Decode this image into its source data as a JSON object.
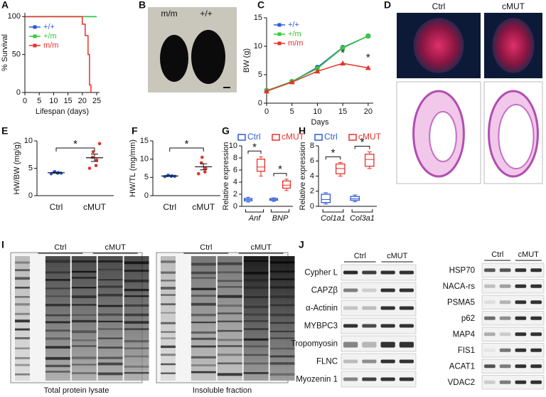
{
  "panel_letters": [
    "A",
    "B",
    "C",
    "D",
    "E",
    "F",
    "G",
    "H",
    "I",
    "J"
  ],
  "chart_data": [
    {
      "type": "line",
      "step": true,
      "xlabel": "Lifespan (days)",
      "ylabel": "% Survival",
      "x": [
        0,
        19,
        20,
        21,
        22,
        22.5,
        23,
        25
      ],
      "xlim": [
        0,
        26
      ],
      "xticks": [
        0,
        5,
        10,
        15,
        20,
        25
      ],
      "ylim": [
        0,
        105
      ],
      "yticks": [
        0,
        50,
        100
      ],
      "legend": "upper left",
      "series": [
        {
          "name": "+/+",
          "color": "#2a5bd7",
          "values": [
            100,
            100,
            100,
            100,
            100,
            100,
            100,
            100
          ]
        },
        {
          "name": "+/m",
          "color": "#33cc33",
          "values": [
            100,
            100,
            100,
            100,
            100,
            100,
            100,
            100
          ]
        },
        {
          "name": "m/m",
          "color": "#e8312a",
          "values": [
            100,
            100,
            90,
            75,
            50,
            10,
            0,
            null
          ]
        }
      ]
    },
    {
      "type": "line",
      "xlabel": "Days",
      "ylabel": "BW (g)",
      "x": [
        0,
        5,
        10,
        15,
        20
      ],
      "xlim": [
        0,
        21
      ],
      "xticks": [
        0,
        5,
        10,
        15,
        20
      ],
      "ylim": [
        0,
        15
      ],
      "yticks": [
        0,
        5,
        10,
        15
      ],
      "legend": "upper left",
      "annotations": [
        "*",
        "*"
      ],
      "series": [
        {
          "name": "+/+",
          "color": "#2a5bd7",
          "marker": "circle",
          "values": [
            2.2,
            3.8,
            6.3,
            9.8,
            11.8
          ]
        },
        {
          "name": "+/m",
          "color": "#33cc33",
          "marker": "square",
          "values": [
            2.2,
            3.8,
            6.1,
            9.7,
            11.8
          ]
        },
        {
          "name": "m/m",
          "color": "#e8312a",
          "marker": "triangle",
          "values": [
            2.1,
            3.7,
            5.6,
            7.0,
            6.2
          ]
        }
      ]
    },
    {
      "type": "dot",
      "ylabel": "HW/BW (mg/g)",
      "categories": [
        "Ctrl",
        "cMUT"
      ],
      "colors": [
        "#2a5bd7",
        "#e8312a"
      ],
      "ylim": [
        0,
        10
      ],
      "yticks": [
        0,
        5,
        10
      ],
      "annotations": [
        "*"
      ],
      "values": [
        [
          4.0,
          4.1,
          4.2,
          4.3,
          4.4,
          4.1
        ],
        [
          5.0,
          5.5,
          6.5,
          7.0,
          8.0,
          9.5
        ]
      ]
    },
    {
      "type": "dot",
      "ylabel": "HW/TL (mg/mm)",
      "categories": [
        "Ctrl",
        "cMUT"
      ],
      "colors": [
        "#2a5bd7",
        "#e8312a"
      ],
      "ylim": [
        0,
        15
      ],
      "yticks": [
        0,
        5,
        10,
        15
      ],
      "annotations": [
        "*"
      ],
      "values": [
        [
          5.2,
          5.3,
          5.4,
          5.5,
          5.6,
          5.3
        ],
        [
          6.0,
          6.5,
          7.5,
          9.0,
          10.5
        ]
      ]
    },
    {
      "type": "box",
      "ylabel": "Relative expression",
      "categories": [
        "Anf",
        "BNP"
      ],
      "ylim": [
        0,
        10
      ],
      "yticks": [
        0,
        2,
        4,
        6,
        8,
        10
      ],
      "annotations": [
        "*",
        "*"
      ],
      "series": [
        {
          "name": "Ctrl",
          "color": "#2a5bd7",
          "min": [
            0.7,
            0.8
          ],
          "q1": [
            0.9,
            1.0
          ],
          "median": [
            1.1,
            1.1
          ],
          "q3": [
            1.3,
            1.3
          ],
          "max": [
            1.5,
            1.4
          ]
        },
        {
          "name": "cMUT",
          "color": "#e8312a",
          "min": [
            5.0,
            2.6
          ],
          "q1": [
            5.8,
            3.0
          ],
          "median": [
            6.5,
            3.5
          ],
          "q3": [
            7.8,
            4.2
          ],
          "max": [
            8.2,
            4.5
          ]
        }
      ]
    },
    {
      "type": "box",
      "ylabel": "Relative expression",
      "categories": [
        "Col1a1",
        "Col3a1"
      ],
      "ylim": [
        0,
        8
      ],
      "yticks": [
        0,
        2,
        4,
        6,
        8
      ],
      "annotations": [
        "*",
        "*"
      ],
      "series": [
        {
          "name": "Ctrl",
          "color": "#2a5bd7",
          "min": [
            0.3,
            0.6
          ],
          "q1": [
            0.5,
            0.8
          ],
          "median": [
            0.9,
            1.0
          ],
          "q3": [
            1.6,
            1.3
          ],
          "max": [
            1.8,
            1.5
          ]
        },
        {
          "name": "cMUT",
          "color": "#e8312a",
          "min": [
            4.0,
            5.0
          ],
          "q1": [
            4.3,
            5.3
          ],
          "median": [
            5.0,
            6.2
          ],
          "q3": [
            5.6,
            6.9
          ],
          "max": [
            5.8,
            7.2
          ]
        }
      ]
    }
  ],
  "photos": {
    "mice_labels": [
      "m/m",
      "+/+"
    ],
    "heart_labels": [
      "Ctrl",
      "cMUT"
    ]
  },
  "gels": {
    "groups": [
      "Ctrl",
      "cMUT"
    ],
    "captions": [
      "Total protein lysate",
      "Insoluble fraction"
    ]
  },
  "blots": {
    "groups": [
      "Ctrl",
      "cMUT"
    ],
    "left": [
      "Cypher L",
      "CAPZβ",
      "α-Actinin",
      "MYBPC3",
      "Tropomyosin",
      "FLNC",
      "Myozenin 1"
    ],
    "right": [
      "HSP70",
      "NACA-rs",
      "PSMA5",
      "p62",
      "MAP4",
      "FIS1",
      "ACAT1",
      "VDAC2"
    ]
  }
}
